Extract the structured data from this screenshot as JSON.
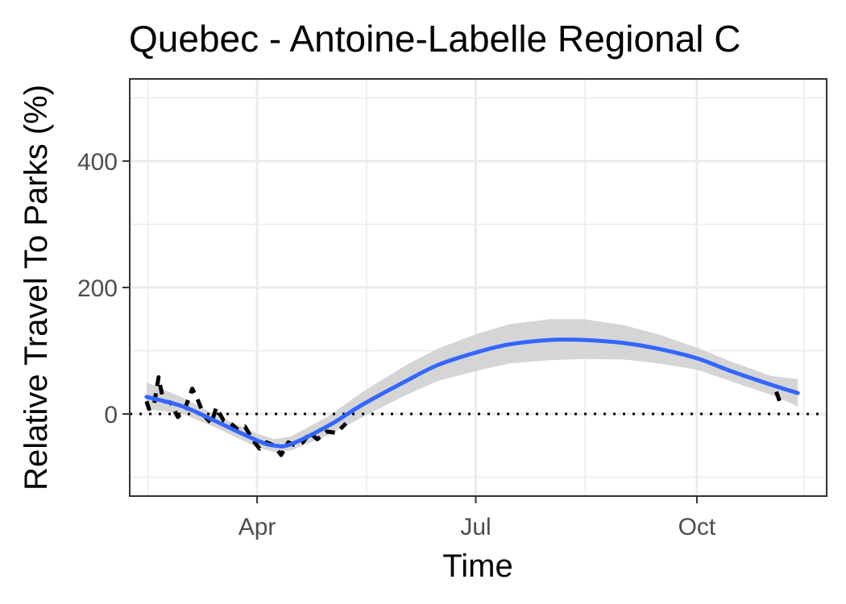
{
  "chart_data": {
    "type": "line",
    "title": "Quebec - Antoine-Labelle Regional C",
    "xlabel": "Time",
    "ylabel": "Relative Travel To Parks (%)",
    "x_ticks": [
      {
        "label": "Apr",
        "date": "2020-04-01"
      },
      {
        "label": "Jul",
        "date": "2020-07-01"
      },
      {
        "label": "Oct",
        "date": "2020-10-01"
      }
    ],
    "y_ticks": [
      0,
      200,
      400
    ],
    "xlim": [
      "2020-02-08",
      "2020-11-24"
    ],
    "ylim": [
      -130,
      530
    ],
    "grid": true,
    "reference_line": {
      "y": 0,
      "style": "dotted",
      "color": "#000000"
    },
    "series": [
      {
        "style": "dashed",
        "color": "#000000",
        "points": [
          {
            "x": "2020-02-15",
            "y": 20
          },
          {
            "x": "2020-02-16",
            "y": 8
          },
          {
            "x": "2020-02-18",
            "y": 12
          },
          {
            "x": "2020-02-20",
            "y": 58
          },
          {
            "x": "2020-02-22",
            "y": 20
          },
          {
            "x": "2020-02-25",
            "y": 18
          },
          {
            "x": "2020-02-28",
            "y": -5
          },
          {
            "x": "2020-03-02",
            "y": 8
          },
          {
            "x": "2020-03-05",
            "y": 40
          },
          {
            "x": "2020-03-07",
            "y": 25
          },
          {
            "x": "2020-03-10",
            "y": -3
          },
          {
            "x": "2020-03-13",
            "y": -15
          },
          {
            "x": "2020-03-15",
            "y": 10
          },
          {
            "x": "2020-03-18",
            "y": -10
          },
          {
            "x": "2020-03-21",
            "y": -15
          },
          {
            "x": "2020-03-24",
            "y": -25
          },
          {
            "x": "2020-03-27",
            "y": -20
          },
          {
            "x": "2020-03-30",
            "y": -40
          },
          {
            "x": "2020-04-02",
            "y": -55
          },
          {
            "x": "2020-04-05",
            "y": -45
          },
          {
            "x": "2020-04-08",
            "y": -50
          },
          {
            "x": "2020-04-11",
            "y": -65
          },
          {
            "x": "2020-04-14",
            "y": -45
          },
          {
            "x": "2020-04-17",
            "y": -50
          },
          {
            "x": "2020-04-20",
            "y": -45
          },
          {
            "x": "2020-04-23",
            "y": -30
          },
          {
            "x": "2020-04-26",
            "y": -40
          },
          {
            "x": "2020-04-30",
            "y": -28
          },
          {
            "x": "2020-05-04",
            "y": -30
          },
          {
            "x": "2020-05-08",
            "y": -15
          }
        ]
      },
      {
        "style": "dashed",
        "color": "#000000",
        "points": [
          {
            "x": "2020-11-03",
            "y": 35
          },
          {
            "x": "2020-11-04",
            "y": 25
          },
          {
            "x": "2020-11-05",
            "y": 12
          }
        ]
      }
    ],
    "smooth": {
      "color": "#3366ff",
      "band_color": "#d3d3d3",
      "points": [
        {
          "x": "2020-02-15",
          "y": 27,
          "lo": 8,
          "hi": 50
        },
        {
          "x": "2020-03-01",
          "y": 12,
          "lo": 0,
          "hi": 26
        },
        {
          "x": "2020-03-15",
          "y": -12,
          "lo": -22,
          "hi": -2
        },
        {
          "x": "2020-04-01",
          "y": -42,
          "lo": -53,
          "hi": -31
        },
        {
          "x": "2020-04-08",
          "y": -50,
          "lo": -60,
          "hi": -40
        },
        {
          "x": "2020-04-15",
          "y": -48,
          "lo": -58,
          "hi": -36
        },
        {
          "x": "2020-05-01",
          "y": -18,
          "lo": -33,
          "hi": -3
        },
        {
          "x": "2020-05-15",
          "y": 15,
          "lo": -5,
          "hi": 35
        },
        {
          "x": "2020-06-01",
          "y": 50,
          "lo": 28,
          "hi": 75
        },
        {
          "x": "2020-06-15",
          "y": 77,
          "lo": 52,
          "hi": 103
        },
        {
          "x": "2020-07-01",
          "y": 97,
          "lo": 68,
          "hi": 126
        },
        {
          "x": "2020-07-15",
          "y": 110,
          "lo": 80,
          "hi": 142
        },
        {
          "x": "2020-08-01",
          "y": 117,
          "lo": 85,
          "hi": 150
        },
        {
          "x": "2020-08-15",
          "y": 117,
          "lo": 87,
          "hi": 150
        },
        {
          "x": "2020-09-01",
          "y": 112,
          "lo": 86,
          "hi": 140
        },
        {
          "x": "2020-09-15",
          "y": 103,
          "lo": 80,
          "hi": 126
        },
        {
          "x": "2020-10-01",
          "y": 88,
          "lo": 70,
          "hi": 105
        },
        {
          "x": "2020-10-15",
          "y": 68,
          "lo": 52,
          "hi": 83
        },
        {
          "x": "2020-11-01",
          "y": 46,
          "lo": 30,
          "hi": 60
        },
        {
          "x": "2020-11-12",
          "y": 33,
          "lo": 12,
          "hi": 55
        }
      ]
    }
  }
}
